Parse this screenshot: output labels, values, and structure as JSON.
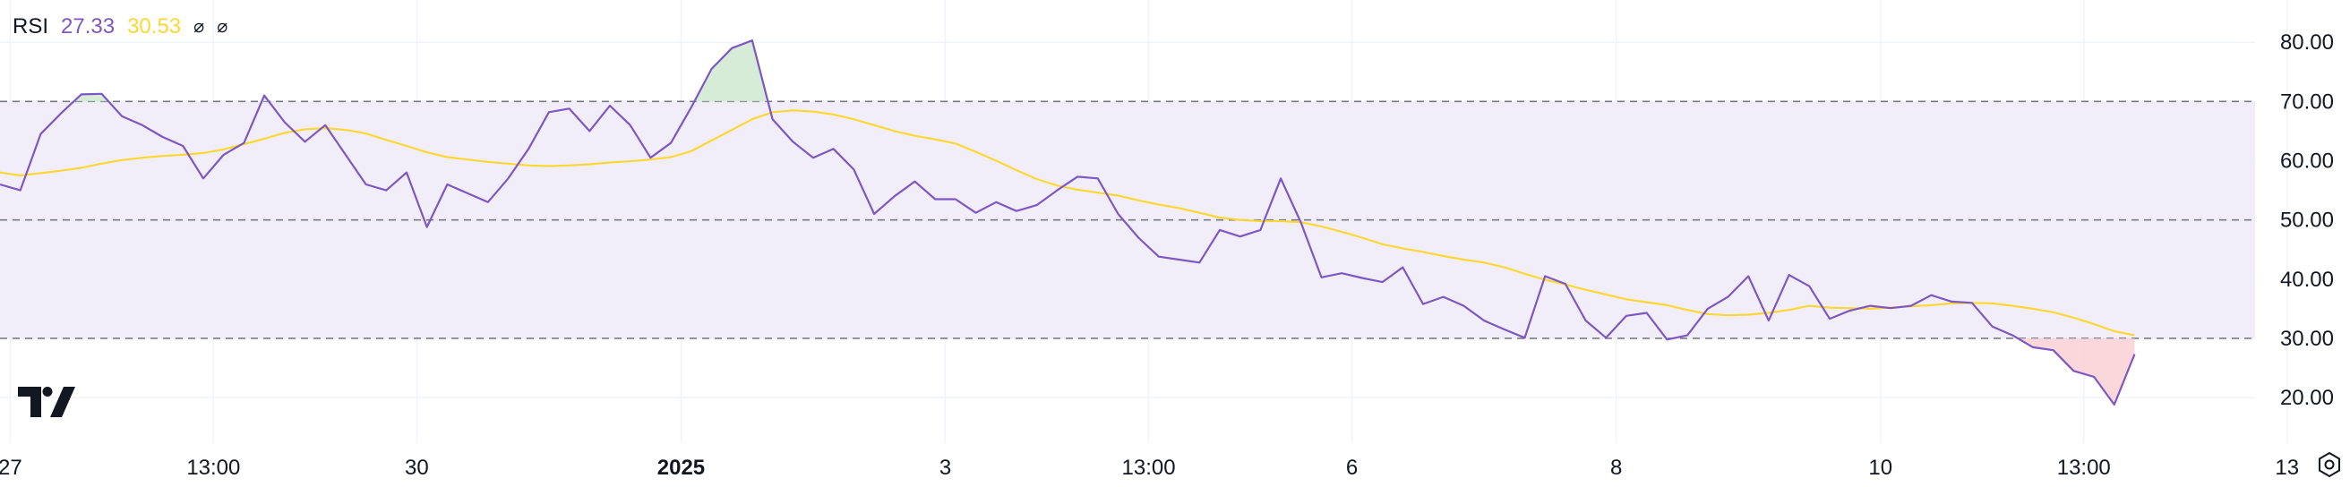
{
  "legend": {
    "name": "RSI",
    "rsi_value": "27.33",
    "ma_value": "30.53",
    "toggle_1": "⌀",
    "toggle_2": "⌀"
  },
  "colors": {
    "rsi_line": "#7e57c2",
    "ma_line": "#fdd835",
    "band_fill": "#efebf8",
    "overbought_fill": "#c8e6c9",
    "oversold_fill": "#f8c9cf",
    "grid": "#f0f3fa",
    "dashed": "#787b86",
    "axis_text": "#131722"
  },
  "chart_data": {
    "type": "line",
    "title": "RSI",
    "ylim": [
      15,
      83
    ],
    "yticks": [
      "20.00",
      "30.00",
      "40.00",
      "50.00",
      "60.00",
      "70.00",
      "80.00"
    ],
    "ytick_values": [
      20,
      30,
      40,
      50,
      60,
      70,
      80
    ],
    "levels": {
      "upper": 70,
      "middle": 50,
      "lower": 30
    },
    "xticks": [
      {
        "label": "27",
        "index": 0.5,
        "bold": false
      },
      {
        "label": "13:00",
        "index": 10.5,
        "bold": false
      },
      {
        "label": "30",
        "index": 20.5,
        "bold": false
      },
      {
        "label": "2025",
        "index": 33.5,
        "bold": true
      },
      {
        "label": "3",
        "index": 46.5,
        "bold": false
      },
      {
        "label": "13:00",
        "index": 56.5,
        "bold": false
      },
      {
        "label": "6",
        "index": 66.5,
        "bold": false
      },
      {
        "label": "8",
        "index": 79.5,
        "bold": false
      },
      {
        "label": "10",
        "index": 92.5,
        "bold": false
      },
      {
        "label": "13:00",
        "index": 102.5,
        "bold": false
      },
      {
        "label": "13",
        "index": 112.5,
        "bold": false
      }
    ],
    "series": [
      {
        "name": "RSI",
        "values": [
          56,
          55,
          64.5,
          68,
          71.2,
          71.3,
          67.5,
          66,
          64,
          62.5,
          57,
          61,
          63,
          71,
          66.5,
          63.2,
          66,
          61,
          56,
          55,
          58,
          48.8,
          56,
          54.5,
          53,
          57,
          62,
          68.2,
          68.8,
          65,
          69.3,
          66,
          60.5,
          63,
          69,
          75.5,
          79,
          80.3,
          67,
          63.2,
          60.5,
          62,
          58.5,
          51,
          54,
          56.5,
          53.5,
          53.5,
          51.2,
          53,
          51.5,
          52.5,
          55,
          57.3,
          57,
          51,
          47,
          43.8,
          43.3,
          42.8,
          48.3,
          47.2,
          48.3,
          57,
          49.5,
          40.3,
          41,
          40.2,
          39.5,
          42,
          35.8,
          37,
          35.5,
          33,
          31.5,
          30.1,
          40.5,
          39.2,
          33,
          30.1,
          33.8,
          34.3,
          29.8,
          30.5,
          35,
          37,
          40.5,
          33,
          40.7,
          38.8,
          33.3,
          34.7,
          35.5,
          35.1,
          35.5,
          37.3,
          36.2,
          36,
          32,
          30.5,
          28.5,
          28,
          24.5,
          23.5,
          18.8,
          27.33
        ]
      },
      {
        "name": "MA",
        "values": [
          58,
          57.5,
          57.9,
          58.3,
          58.8,
          59.5,
          60.1,
          60.5,
          60.8,
          61,
          61.3,
          61.9,
          62.8,
          63.7,
          64.7,
          65.3,
          65.5,
          65.2,
          64.6,
          63.5,
          62.5,
          61.4,
          60.6,
          60.2,
          59.8,
          59.5,
          59.2,
          59.1,
          59.2,
          59.4,
          59.7,
          59.9,
          60.2,
          60.6,
          61.6,
          63.4,
          65.2,
          67,
          68.2,
          68.5,
          68.3,
          67.8,
          67,
          66,
          65,
          64.2,
          63.6,
          62.9,
          61.5,
          60,
          58.4,
          56.9,
          55.8,
          55.1,
          54.6,
          54.1,
          53.3,
          52.6,
          52,
          51.2,
          50.4,
          50,
          49.8,
          49.8,
          49.6,
          48.9,
          48,
          47,
          45.9,
          45.2,
          44.6,
          43.9,
          43.3,
          42.8,
          42,
          40.9,
          39.9,
          39.1,
          38.2,
          37.4,
          36.6,
          36.1,
          35.6,
          34.8,
          34.1,
          33.9,
          34,
          34.3,
          34.8,
          35.5,
          35.2,
          35.1,
          35,
          35.2,
          35.4,
          35.6,
          35.9,
          36,
          35.9,
          35.5,
          35,
          34.4,
          33.5,
          32.4,
          31.2,
          30.53
        ]
      }
    ]
  }
}
